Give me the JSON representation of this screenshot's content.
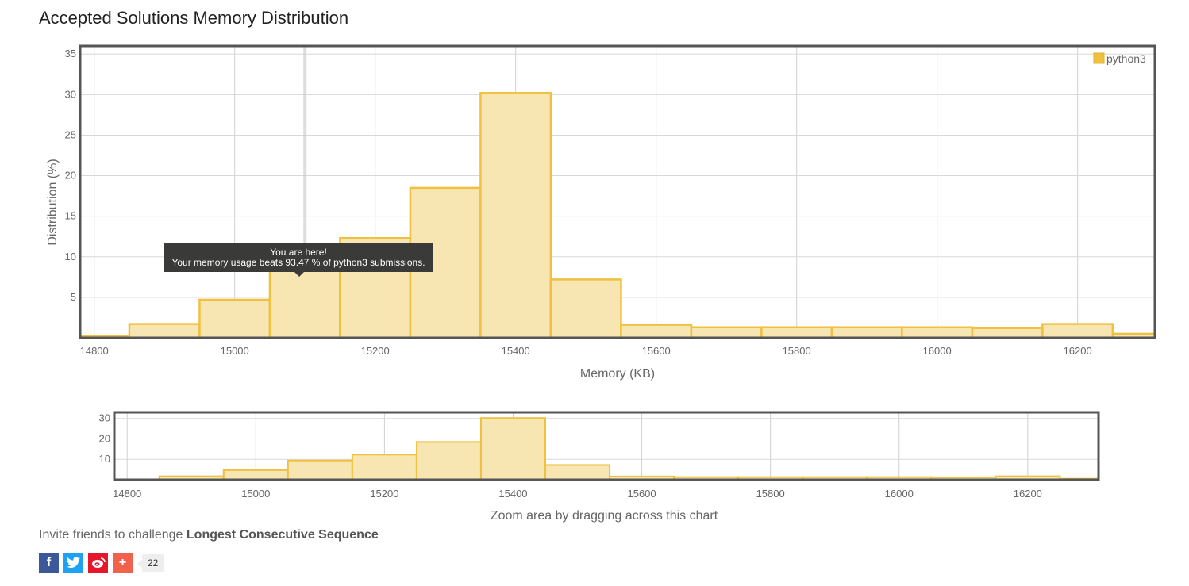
{
  "page": {
    "title": "Accepted Solutions Memory Distribution",
    "invite_prefix": "Invite friends to challenge",
    "problem_name": "Longest Consecutive Sequence",
    "share_count": "22",
    "share": {
      "facebook": "f",
      "twitter": "t",
      "weibo": "w",
      "more": "+"
    }
  },
  "tooltip": {
    "line1": "You are here!",
    "line2": "Your memory usage beats 93.47 % of python3 submissions.",
    "x_value": 15100
  },
  "navigator": {
    "label": "Zoom area by dragging across this chart"
  },
  "colors": {
    "bar_fill": "#f7e5b2",
    "bar_stroke": "#f0c040",
    "legend": "#f0c040",
    "frame": "#555555",
    "tooltip_bg": "#3a3a38"
  },
  "chart_data": {
    "type": "bar",
    "title": "Accepted Solutions Memory Distribution",
    "xlabel": "Memory (KB)",
    "ylabel": "Distribution (%)",
    "xlim": [
      14780,
      16310
    ],
    "ylim": [
      0,
      36
    ],
    "x_ticks": [
      14800,
      15000,
      15200,
      15400,
      15600,
      15800,
      16000,
      16200
    ],
    "y_ticks": [
      5,
      10,
      15,
      20,
      25,
      30,
      35
    ],
    "nav_y_ticks": [
      10,
      20,
      30
    ],
    "nav_ylim": [
      0,
      33
    ],
    "legend": [
      "python3"
    ],
    "legend_position": "top-right",
    "bin_width": 100,
    "series": [
      {
        "name": "python3",
        "x": [
          14800,
          14900,
          15000,
          15100,
          15200,
          15300,
          15400,
          15500,
          15600,
          15700,
          15800,
          15900,
          16000,
          16100,
          16200,
          16300
        ],
        "values": [
          0.2,
          1.7,
          4.7,
          9.4,
          12.3,
          18.5,
          30.2,
          7.2,
          1.6,
          1.3,
          1.3,
          1.3,
          1.3,
          1.2,
          1.7,
          0.5
        ]
      }
    ]
  }
}
